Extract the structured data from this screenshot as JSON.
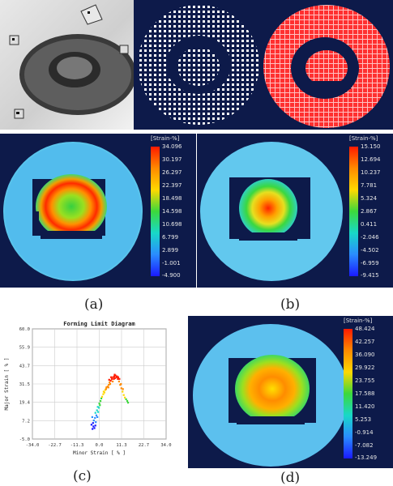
{
  "labels": {
    "a": "(a)",
    "b": "(b)",
    "c": "(c)",
    "d": "(d)"
  },
  "legends": {
    "a": {
      "title": "[Strain-%]",
      "ticks": [
        "34.096",
        "30.197",
        "26.297",
        "22.397",
        "18.498",
        "14.598",
        "10.698",
        "6.799",
        "2.899",
        "-1.001",
        "-4.900"
      ]
    },
    "b": {
      "title": "[Strain-%]",
      "ticks": [
        "15.150",
        "12.694",
        "10.237",
        "7.781",
        "5.324",
        "2.867",
        "0.411",
        "-2.046",
        "-4.502",
        "-6.959",
        "-9.415"
      ]
    },
    "d": {
      "title": "[Strain-%]",
      "ticks": [
        "48.424",
        "42.257",
        "36.090",
        "29.922",
        "23.755",
        "17.588",
        "11.420",
        "5.253",
        "-0.914",
        "-7.082",
        "-13.249"
      ]
    }
  },
  "chart_data": {
    "type": "scatter",
    "title": "Forming Limit Diagram",
    "xlabel": "Minor Strain [ % ]",
    "ylabel": "Major Strain [ % ]",
    "xlim": [
      -34.0,
      34.0
    ],
    "ylim": [
      -5.0,
      60.0
    ],
    "xticks": [
      "-34.0",
      "-22.7",
      "-11.3",
      "0.0",
      "11.3",
      "22.7",
      "34.0"
    ],
    "yticks": [
      "60.0",
      "55.9",
      "43.7",
      "31.5",
      "19.4",
      "7.2",
      "-5.0"
    ],
    "grid": true,
    "points": [
      [
        -3.5,
        1.0
      ],
      [
        -3.0,
        2.5
      ],
      [
        -2.5,
        1.5
      ],
      [
        -2.0,
        3.0
      ],
      [
        -4.0,
        3.5
      ],
      [
        -3.2,
        4.5
      ],
      [
        -2.8,
        6.0
      ],
      [
        -1.8,
        5.0
      ],
      [
        -2.2,
        7.5
      ],
      [
        -3.6,
        8.0
      ],
      [
        -1.5,
        9.0
      ],
      [
        -2.0,
        10.5
      ],
      [
        -1.0,
        8.0
      ],
      [
        -1.2,
        12.0
      ],
      [
        -0.6,
        11.0
      ],
      [
        -0.8,
        14.0
      ],
      [
        -0.2,
        13.5
      ],
      [
        0.0,
        16.0
      ],
      [
        0.3,
        15.0
      ],
      [
        0.6,
        17.5
      ],
      [
        1.0,
        19.0
      ],
      [
        1.4,
        20.0
      ],
      [
        2.0,
        21.5
      ],
      [
        2.6,
        22.5
      ],
      [
        3.0,
        24.0
      ],
      [
        3.6,
        25.5
      ],
      [
        4.2,
        26.0
      ],
      [
        4.8,
        27.0
      ],
      [
        5.2,
        28.5
      ],
      [
        5.8,
        29.5
      ],
      [
        6.4,
        30.5
      ],
      [
        7.0,
        31.5
      ],
      [
        7.6,
        32.0
      ],
      [
        8.2,
        32.5
      ],
      [
        8.8,
        31.5
      ],
      [
        9.4,
        30.5
      ],
      [
        10.0,
        29.0
      ],
      [
        10.6,
        27.0
      ],
      [
        11.2,
        25.0
      ],
      [
        11.8,
        23.0
      ],
      [
        12.4,
        21.0
      ],
      [
        13.0,
        19.5
      ],
      [
        13.6,
        18.5
      ],
      [
        14.2,
        17.5
      ],
      [
        14.6,
        16.5
      ],
      [
        2.2,
        23.0
      ],
      [
        3.4,
        24.5
      ],
      [
        4.6,
        25.5
      ],
      [
        5.5,
        27.5
      ],
      [
        6.8,
        29.0
      ],
      [
        7.4,
        30.5
      ],
      [
        9.0,
        32.0
      ],
      [
        10.2,
        30.5
      ],
      [
        11.0,
        27.5
      ],
      [
        12.0,
        24.5
      ],
      [
        8.0,
        31.0
      ],
      [
        7.8,
        33.0
      ],
      [
        9.6,
        31.5
      ],
      [
        6.0,
        31.5
      ],
      [
        5.0,
        30.0
      ]
    ]
  }
}
